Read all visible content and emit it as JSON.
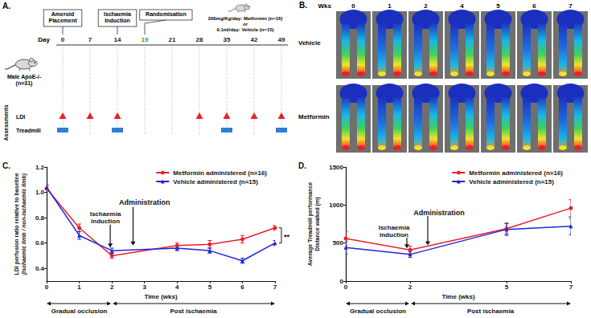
{
  "panel_a": {
    "label": "A.",
    "day_label": "Day",
    "days": [
      0,
      7,
      14,
      19,
      21,
      28,
      35,
      42,
      49
    ],
    "highlight_day": 19,
    "events": [
      {
        "text": "Ameroid Placement",
        "day": 0
      },
      {
        "text": "Ischaemia Induction",
        "day": 14
      },
      {
        "text": "Randomisation",
        "day": 19
      }
    ],
    "treatment": [
      "300mg/Kg/day: Metformin (n=16)",
      "or",
      "0.1ml/day: Vehicle (n=15)"
    ],
    "mice": [
      "Male ApoE-/-",
      "(n=31)"
    ],
    "assessments_label": "Assessments",
    "assessments": [
      {
        "name": "LDI",
        "days": [
          0,
          7,
          14,
          28,
          35,
          42,
          49
        ],
        "color": "#e8202a",
        "marker": "triangle"
      },
      {
        "name": "Treadmill",
        "days": [
          0,
          14,
          35,
          49
        ],
        "color": "#2f7fd4",
        "marker": "rect"
      }
    ]
  },
  "panel_b": {
    "label": "B.",
    "header": "Wks",
    "weeks": [
      0,
      1,
      2,
      4,
      5,
      6,
      7
    ],
    "rows": [
      "Vehicle",
      "Metformin"
    ]
  },
  "chart_data": [
    {
      "type": "line",
      "panel_label": "C.",
      "x_label": "Time (wks)",
      "y_label": [
        "LDI perfusion ratio relative to baseline",
        "(ischaemic limb / non-ischaemic limb)"
      ],
      "x": [
        0,
        1,
        2,
        4,
        5,
        6,
        7
      ],
      "series": [
        {
          "name": "Metformin administered (n=16)",
          "color": "#e8202a",
          "marker": "circle",
          "values": [
            1.03,
            0.72,
            0.5,
            0.58,
            0.59,
            0.63,
            0.72
          ],
          "errors": [
            0.02,
            0.03,
            0.02,
            0.02,
            0.03,
            0.03,
            0.02
          ]
        },
        {
          "name": "Vehicle administered (n=15)",
          "color": "#2323d8",
          "marker": "triangle",
          "values": [
            1.04,
            0.66,
            0.54,
            0.56,
            0.54,
            0.46,
            0.6
          ],
          "errors": [
            0.02,
            0.03,
            0.02,
            0.02,
            0.02,
            0.02,
            0.02
          ]
        }
      ],
      "xlim": [
        0,
        7
      ],
      "xticks": [
        0,
        1,
        2,
        3,
        4,
        5,
        6,
        7
      ],
      "ylim": [
        0.3,
        1.2
      ],
      "yticks": [
        0.4,
        0.6,
        0.8,
        {
          "value": 1.0,
          "label": "1.0"
        },
        1.2
      ],
      "annotations": [
        "Ischaemia induction",
        "Administration"
      ],
      "phases": [
        "Gradual occlusion",
        "Post ischaemia"
      ],
      "significance": "**",
      "legend": "top-right",
      "grid": false
    },
    {
      "type": "line",
      "panel_label": "D.",
      "x_label": "Time (wks)",
      "y_label": [
        "Average Treadmill performance",
        "Distance walked (m)"
      ],
      "x": [
        0,
        2,
        5,
        7
      ],
      "series": [
        {
          "name": "Metformin administered (n=16)",
          "color": "#e8202a",
          "marker": "circle",
          "values": [
            560,
            410,
            690,
            960
          ],
          "errors": [
            90,
            50,
            70,
            110
          ]
        },
        {
          "name": "Vehicle administered (n=15)",
          "color": "#2323d8",
          "marker": "triangle",
          "values": [
            440,
            350,
            680,
            720
          ],
          "errors": [
            80,
            40,
            80,
            110
          ]
        }
      ],
      "xlim": [
        0,
        7
      ],
      "xticks": [
        0,
        2,
        5,
        7
      ],
      "ylim": [
        0,
        1500
      ],
      "yticks": [
        0,
        500,
        1000,
        1500
      ],
      "annotations": [
        "Ischaemia induction",
        "Administration"
      ],
      "phases": [
        "Gradual occlusion",
        "Post ischaemia"
      ],
      "legend": "top-right",
      "grid": false
    }
  ]
}
